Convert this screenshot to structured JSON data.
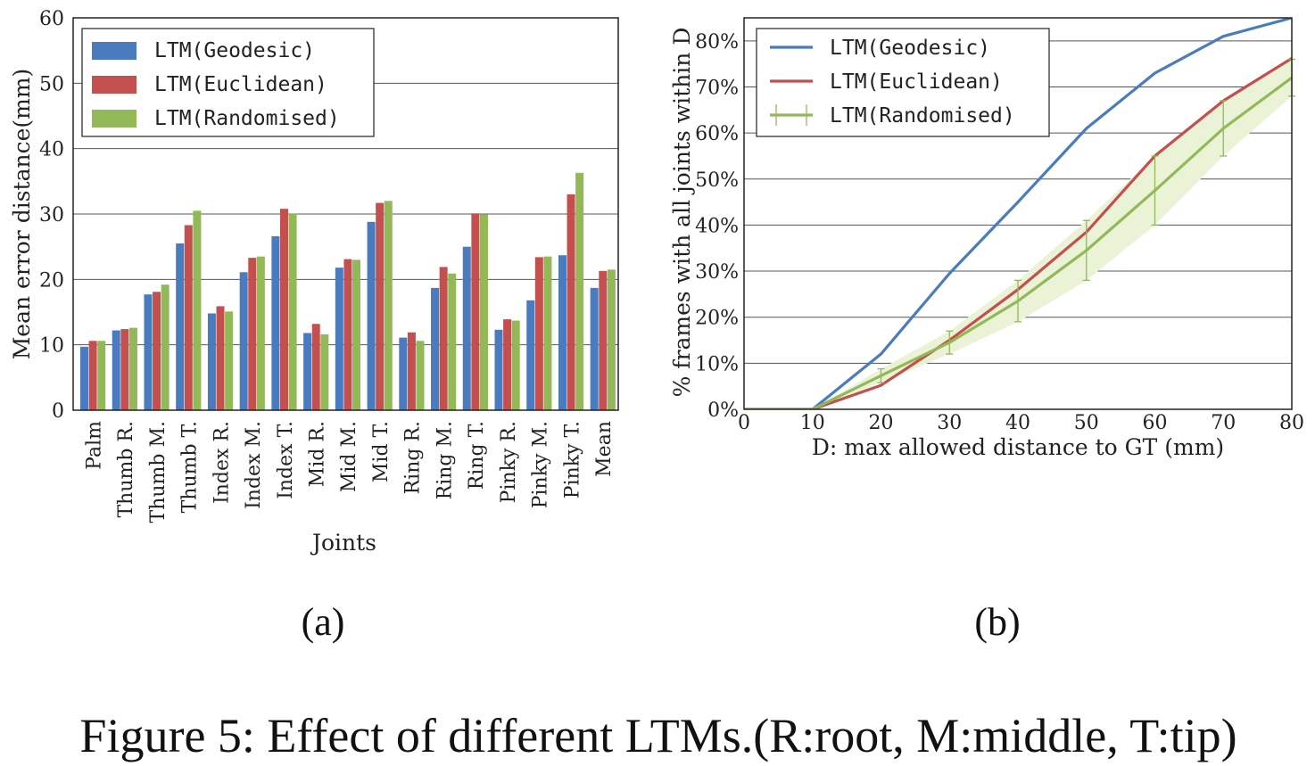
{
  "caption": "Figure 5: Effect of different LTMs.(R:root, M:middle, T:tip)",
  "colors": {
    "geodesic": "#4a7bbf",
    "euclidean": "#c44f4f",
    "randomised": "#93b857",
    "band": "#eaf3d6"
  },
  "chart_data": [
    {
      "panel_label": "(a)",
      "type": "bar",
      "xlabel": "Joints",
      "ylabel": "Mean error distance(mm)",
      "ylim": [
        0,
        60
      ],
      "yticks": [
        0,
        10,
        20,
        30,
        40,
        50,
        60
      ],
      "grid": "horizontal",
      "legend_position": "top-left",
      "categories": [
        "Palm",
        "Thumb R.",
        "Thumb M.",
        "Thumb T.",
        "Index R.",
        "Index M.",
        "Index T.",
        "Mid R.",
        "Mid M.",
        "Mid T.",
        "Ring R.",
        "Ring M.",
        "Ring T.",
        "Pinky R.",
        "Pinky M.",
        "Pinky T.",
        "Mean"
      ],
      "series": [
        {
          "name": "LTM(Geodesic)",
          "color": "#4a7bbf",
          "values": [
            9.7,
            12.2,
            17.7,
            25.5,
            14.8,
            21.1,
            26.6,
            11.8,
            21.8,
            28.8,
            11.1,
            18.7,
            25.0,
            12.3,
            16.8,
            23.7,
            18.7
          ]
        },
        {
          "name": "LTM(Euclidean)",
          "color": "#c44f4f",
          "values": [
            10.6,
            12.4,
            18.1,
            28.3,
            15.9,
            23.3,
            30.8,
            13.2,
            23.1,
            31.7,
            11.9,
            21.9,
            30.1,
            13.9,
            23.4,
            33.0,
            21.3
          ]
        },
        {
          "name": "LTM(Randomised)",
          "color": "#93b857",
          "values": [
            10.6,
            12.6,
            19.2,
            30.5,
            15.1,
            23.5,
            30.1,
            11.6,
            23.0,
            32.0,
            10.6,
            20.9,
            29.9,
            13.7,
            23.5,
            36.3,
            21.5
          ]
        }
      ]
    },
    {
      "panel_label": "(b)",
      "type": "line",
      "xlabel": "D: max allowed distance to GT (mm)",
      "ylabel": "% frames with all joints within D",
      "xlim": [
        0,
        80
      ],
      "ylim": [
        0,
        85
      ],
      "xticks": [
        0,
        10,
        20,
        30,
        40,
        50,
        60,
        70,
        80
      ],
      "yticks": [
        0,
        10,
        20,
        30,
        40,
        50,
        60,
        70,
        80
      ],
      "ytick_suffix": "%",
      "grid": "horizontal",
      "legend_position": "top-left",
      "x": [
        0,
        10,
        20,
        30,
        40,
        50,
        60,
        70,
        80
      ],
      "series": [
        {
          "name": "LTM(Geodesic)",
          "color": "#4a7bbf",
          "values": [
            0,
            0,
            12,
            29.5,
            45,
            61,
            73,
            81,
            86.5
          ]
        },
        {
          "name": "LTM(Euclidean)",
          "color": "#c44f4f",
          "values": [
            0,
            0,
            5.2,
            15,
            26,
            38.5,
            55,
            67,
            76.2
          ]
        },
        {
          "name": "LTM(Randomised)",
          "color": "#93b857",
          "values": [
            0,
            0,
            7.3,
            14.5,
            23.5,
            34.5,
            47.5,
            61,
            72
          ],
          "error": [
            0,
            0,
            1.5,
            2.5,
            4.5,
            6.5,
            7.5,
            6,
            4
          ]
        }
      ]
    }
  ]
}
